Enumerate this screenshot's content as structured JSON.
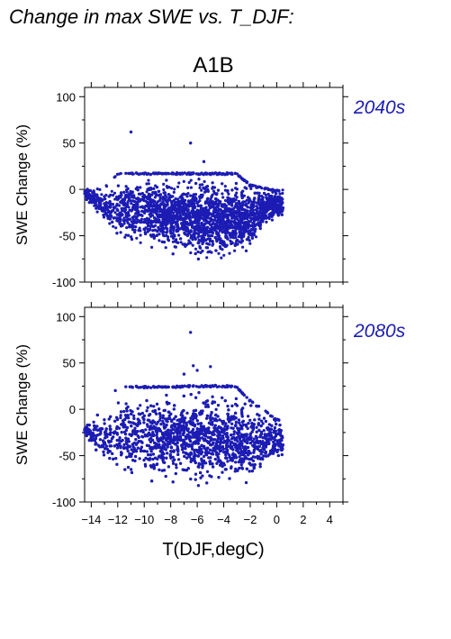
{
  "page": {
    "title": "Change in max SWE vs. T_DJF:",
    "scenario": "A1B"
  },
  "chart_data": {
    "type": "scatter",
    "xlabel": "T(DJF,degC)",
    "ylabel": "SWE Change (%)",
    "xlim": [
      -14.5,
      5
    ],
    "ylim": [
      -100,
      110
    ],
    "xticks": [
      -14,
      -12,
      -10,
      -8,
      -6,
      -4,
      -2,
      0,
      2,
      4
    ],
    "yticks": [
      -100,
      -50,
      0,
      50,
      100
    ],
    "grid": false,
    "point_color": "#1c1cb4",
    "panels": [
      {
        "label": "2040s",
        "description_points": "dense cloud of thousands of grid cells",
        "x_range": [
          -14.5,
          0.5
        ],
        "y_range": [
          -85,
          20
        ],
        "cap_y": 18,
        "outliers": [
          [
            -11,
            62
          ],
          [
            -6.5,
            50
          ],
          [
            -5.5,
            30
          ],
          [
            -14.2,
            -2
          ],
          [
            -13.8,
            -3
          ],
          [
            -0.3,
            -3
          ]
        ],
        "envelope": [
          [
            -14.5,
            -10,
            0
          ],
          [
            -13,
            -40,
            2
          ],
          [
            -12,
            -60,
            18
          ],
          [
            -10,
            -62,
            18
          ],
          [
            -8,
            -75,
            18
          ],
          [
            -6,
            -80,
            18
          ],
          [
            -4,
            -86,
            18
          ],
          [
            -3,
            -78,
            18
          ],
          [
            -2,
            -65,
            5
          ],
          [
            -1,
            -45,
            2
          ],
          [
            0,
            -35,
            0
          ]
        ]
      },
      {
        "label": "2080s",
        "description_points": "dense cloud of thousands of grid cells",
        "x_range": [
          -14.5,
          0.5
        ],
        "y_range": [
          -92,
          27
        ],
        "cap_y": 26,
        "outliers": [
          [
            -6.5,
            83
          ],
          [
            -6.3,
            47
          ],
          [
            -5,
            46
          ],
          [
            -6,
            42
          ],
          [
            -7,
            38
          ],
          [
            -14.5,
            -25
          ]
        ],
        "envelope": [
          [
            -14.5,
            -25,
            -20
          ],
          [
            -13.5,
            -60,
            -5
          ],
          [
            -12,
            -75,
            25
          ],
          [
            -10,
            -80,
            25
          ],
          [
            -8,
            -85,
            25
          ],
          [
            -6,
            -88,
            26
          ],
          [
            -4,
            -92,
            26
          ],
          [
            -3,
            -88,
            25
          ],
          [
            -2,
            -80,
            10
          ],
          [
            -1,
            -70,
            0
          ],
          [
            0,
            -60,
            -10
          ]
        ]
      }
    ]
  }
}
